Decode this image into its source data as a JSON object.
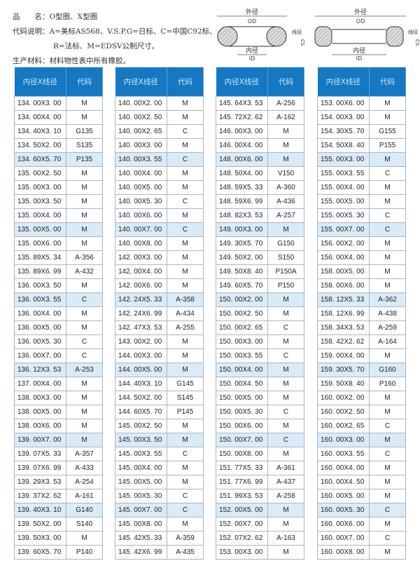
{
  "info": {
    "line1_label": "品　　名：",
    "line1_value": "O型圈、X型圈",
    "line2_label": "代码说明：",
    "line2_value": "A=美标AS568、V.S.P.G=日标、C=中国C92标、",
    "line3_value": "R=法标、M=EDSV公制尺寸。",
    "line4_label": "生产材料：",
    "line4_value": "材料物性表中所有橡胶。"
  },
  "diagram": {
    "od_cn": "外径",
    "od": "OD",
    "id_cn": "内径",
    "id": "ID",
    "cs_cn": "线径",
    "cs": "CS"
  },
  "table_headers": {
    "size": "内径X线径",
    "code": "代码"
  },
  "header_color": "#1578c2",
  "highlight_color": "#d9ebf7",
  "tables": [
    [
      [
        "134. 00X3. 00",
        "M"
      ],
      [
        "134. 00X4. 00",
        "M"
      ],
      [
        "134. 40X3. 10",
        "G135"
      ],
      [
        "134. 50X2. 00",
        "S135"
      ],
      [
        "134. 60X5. 70",
        "P135"
      ],
      [
        "135. 00X2. 50",
        "M"
      ],
      [
        "135. 00X3. 00",
        "M"
      ],
      [
        "135. 00X3. 50",
        "M"
      ],
      [
        "135. 00X4. 00",
        "M"
      ],
      [
        "135. 00X5. 00",
        "M"
      ],
      [
        "135. 00X6. 00",
        "M"
      ],
      [
        "135. 89X5. 34",
        "A-356"
      ],
      [
        "135. 89X6. 99",
        "A-432"
      ],
      [
        "136. 00X3. 50",
        "M"
      ],
      [
        "136. 00X3. 55",
        "C"
      ],
      [
        "136. 00X4. 00",
        "M"
      ],
      [
        "136. 00X5. 00",
        "M"
      ],
      [
        "136. 00X5. 30",
        "C"
      ],
      [
        "136. 00X7. 00",
        "C"
      ],
      [
        "136. 12X3. 53",
        "A-253"
      ],
      [
        "137. 00X4. 00",
        "M"
      ],
      [
        "138. 00X3. 00",
        "M"
      ],
      [
        "138. 00X5. 00",
        "M"
      ],
      [
        "138. 00X6. 00",
        "M"
      ],
      [
        "139. 00X7. 00",
        "M"
      ],
      [
        "139. 07X5. 33",
        "A-357"
      ],
      [
        "139. 07X6. 99",
        "A-433"
      ],
      [
        "139. 29X3. 53",
        "A-254"
      ],
      [
        "139. 37X2. 62",
        "A-161"
      ],
      [
        "139. 40X3. 10",
        "G140"
      ],
      [
        "139. 50X2. 00",
        "S140"
      ],
      [
        "139. 50X3. 00",
        "M"
      ],
      [
        "139. 60X5. 70",
        "P140"
      ]
    ],
    [
      [
        "140. 00X2. 00",
        "M"
      ],
      [
        "140. 00X2. 50",
        "M"
      ],
      [
        "140. 00X2. 65",
        "C"
      ],
      [
        "140. 00X3. 00",
        "M"
      ],
      [
        "140. 00X3. 55",
        "C"
      ],
      [
        "140. 00X4. 00",
        "M"
      ],
      [
        "140. 00X5. 00",
        "M"
      ],
      [
        "140. 00X5. 30",
        "C"
      ],
      [
        "140. 00X6. 00",
        "M"
      ],
      [
        "140. 00X7. 00",
        "C"
      ],
      [
        "140. 00X8. 00",
        "M"
      ],
      [
        "142. 00X3. 00",
        "M"
      ],
      [
        "142. 00X4. 00",
        "M"
      ],
      [
        "142. 00X6. 00",
        "M"
      ],
      [
        "142. 24X5. 33",
        "A-358"
      ],
      [
        "142. 24X6. 99",
        "A-434"
      ],
      [
        "142. 47X3. 53",
        "A-255"
      ],
      [
        "143. 00X2. 00",
        "M"
      ],
      [
        "144. 00X3. 00",
        "M"
      ],
      [
        "144. 00X5. 00",
        "M"
      ],
      [
        "144. 40X3. 10",
        "G145"
      ],
      [
        "144. 50X2. 00",
        "S145"
      ],
      [
        "144. 60X5. 70",
        "P145"
      ],
      [
        "145. 00X2. 50",
        "M"
      ],
      [
        "145. 00X3. 50",
        "M"
      ],
      [
        "145. 00X3. 55",
        "C"
      ],
      [
        "145. 00X4. 00",
        "M"
      ],
      [
        "145. 00X5. 00",
        "M"
      ],
      [
        "145. 00X5. 30",
        "C"
      ],
      [
        "145. 00X7. 00",
        "C"
      ],
      [
        "145. 00X8. 00",
        "M"
      ],
      [
        "145. 42X5. 33",
        "A-359"
      ],
      [
        "145. 42X6. 99",
        "A-435"
      ]
    ],
    [
      [
        "145. 64X3. 53",
        "A-256"
      ],
      [
        "145. 72X2. 62",
        "A-162"
      ],
      [
        "146. 00X3. 00",
        "M"
      ],
      [
        "146. 00X4. 00",
        "M"
      ],
      [
        "148. 00X6. 00",
        "M"
      ],
      [
        "148. 50X4. 00",
        "V150"
      ],
      [
        "148. 59X5. 33",
        "A-360"
      ],
      [
        "148. 59X6. 99",
        "A-436"
      ],
      [
        "148. 82X3. 53",
        "A-257"
      ],
      [
        "149. 00X3. 00",
        "M"
      ],
      [
        "149. 30X5. 70",
        "G150"
      ],
      [
        "149. 50X2. 00",
        "S150"
      ],
      [
        "149. 50X8. 40",
        "P150A"
      ],
      [
        "149. 60X5. 70",
        "P150"
      ],
      [
        "150. 00X2. 00",
        "M"
      ],
      [
        "150. 00X2. 50",
        "M"
      ],
      [
        "150. 00X2. 65",
        "C"
      ],
      [
        "150. 00X3. 00",
        "M"
      ],
      [
        "150. 00X3. 55",
        "C"
      ],
      [
        "150. 00X4. 00",
        "M"
      ],
      [
        "150. 00X4. 50",
        "M"
      ],
      [
        "150. 00X5. 00",
        "M"
      ],
      [
        "150. 00X5. 30",
        "C"
      ],
      [
        "150. 00X6. 00",
        "M"
      ],
      [
        "150. 00X7. 00",
        "C"
      ],
      [
        "150. 00X8. 00",
        "M"
      ],
      [
        "151. 77X5. 33",
        "A-361"
      ],
      [
        "151. 77X6. 99",
        "A-437"
      ],
      [
        "151. 99X3. 53",
        "A-258"
      ],
      [
        "152. 00X5. 00",
        "M"
      ],
      [
        "152. 00X7. 00",
        "M"
      ],
      [
        "152. 07X2. 62",
        "A-163"
      ],
      [
        "153. 00X3. 00",
        "M"
      ]
    ],
    [
      [
        "153. 00X6. 00",
        "M"
      ],
      [
        "154. 00X3. 00",
        "M"
      ],
      [
        "154. 30X5. 70",
        "G155"
      ],
      [
        "154. 50X8. 40",
        "P155"
      ],
      [
        "155. 00X3. 00",
        "M"
      ],
      [
        "155. 00X3. 55",
        "C"
      ],
      [
        "155. 00X4. 00",
        "M"
      ],
      [
        "155. 00X5. 00",
        "M"
      ],
      [
        "155. 00X5. 30",
        "C"
      ],
      [
        "155. 00X7. 00",
        "C"
      ],
      [
        "156. 00X2. 00",
        "M"
      ],
      [
        "156. 00X4. 00",
        "M"
      ],
      [
        "158. 00X5. 00",
        "M"
      ],
      [
        "158. 00X6. 00",
        "M"
      ],
      [
        "158. 12X5. 33",
        "A-362"
      ],
      [
        "158. 12X6. 99",
        "A-438"
      ],
      [
        "158. 34X3. 53",
        "A-259"
      ],
      [
        "158. 42X2. 62",
        "A-164"
      ],
      [
        "159. 00X4. 00",
        "M"
      ],
      [
        "159. 30X5. 70",
        "G160"
      ],
      [
        "159. 50X8. 40",
        "P160"
      ],
      [
        "160. 00X2. 00",
        "M"
      ],
      [
        "160. 00X2. 50",
        "M"
      ],
      [
        "160. 00X2. 65",
        "C"
      ],
      [
        "160. 00X3. 00",
        "M"
      ],
      [
        "160. 00X3. 55",
        "C"
      ],
      [
        "160. 00X4. 00",
        "M"
      ],
      [
        "160. 00X4. 50",
        "M"
      ],
      [
        "160. 00X5. 00",
        "M"
      ],
      [
        "160. 00X5. 30",
        "C"
      ],
      [
        "160. 00X6. 00",
        "M"
      ],
      [
        "160. 00X7. 00",
        "C"
      ],
      [
        "160. 00X8. 00",
        "M"
      ]
    ]
  ]
}
